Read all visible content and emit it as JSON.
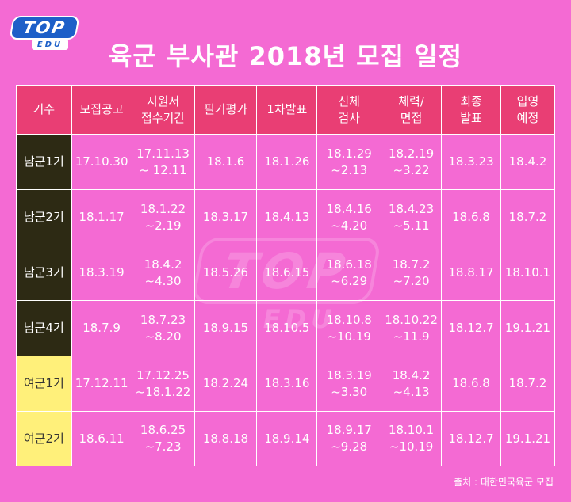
{
  "logo": {
    "top_text": "TOP",
    "edu_text": "EDU"
  },
  "title": "육군 부사관 2018년 모집 일정",
  "headers": [
    "기수",
    "모집공고",
    "지원서\n접수기간",
    "필기평가",
    "1차발표",
    "신체\n검사",
    "체력/\n면접",
    "최종\n발표",
    "입영\n예정"
  ],
  "rows": [
    {
      "term": "남군1기",
      "cells": [
        "17.10.30",
        "17.11.13\n~ 12.11",
        "18.1.6",
        "18.1.26",
        "18.1.29\n~2.13",
        "18.2.19\n~3.22",
        "18.3.23",
        "18.4.2"
      ]
    },
    {
      "term": "남군2기",
      "cells": [
        "18.1.17",
        "18.1.22\n~2.19",
        "18.3.17",
        "18.4.13",
        "18.4.16\n~4.20",
        "18.4.23\n~5.11",
        "18.6.8",
        "18.7.2"
      ]
    },
    {
      "term": "남군3기",
      "cells": [
        "18.3.19",
        "18.4.2\n~4.30",
        "18.5.26",
        "18.6.15",
        "18.6.18\n~6.29",
        "18.7.2\n~7.20",
        "18.8.17",
        "18.10.1"
      ]
    },
    {
      "term": "남군4기",
      "cells": [
        "18.7.9",
        "18.7.23\n~8.20",
        "18.9.15",
        "18.10.5",
        "18.10.8\n~10.19",
        "18.10.22\n~11.9",
        "18.12.7",
        "19.1.21"
      ]
    },
    {
      "term": "여군1기",
      "cells": [
        "17.12.11",
        "17.12.25\n~18.1.22",
        "18.2.24",
        "18.3.16",
        "18.3.19\n~3.30",
        "18.4.2\n~4.13",
        "18.6.8",
        "18.7.2"
      ]
    },
    {
      "term": "여군2기",
      "cells": [
        "18.6.11",
        "18.6.25\n~7.23",
        "18.8.18",
        "18.9.14",
        "18.9.17\n~9.28",
        "18.10.1\n~10.19",
        "18.12.7",
        "19.1.21"
      ]
    }
  ],
  "source": "출처 : 대한민국육군 모집",
  "colors": {
    "background": "#f46ad3",
    "header": "#e93e74",
    "male_term": "#2d2a14",
    "female_term": "#fff07a",
    "logo_blue": "#1d5fc8"
  }
}
